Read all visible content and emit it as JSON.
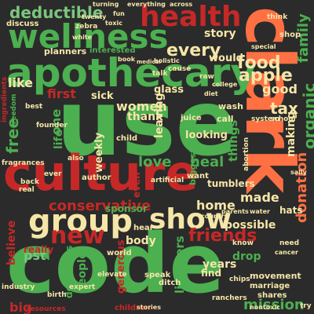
{
  "palette": {
    "background": "#2b2b2b",
    "green": "#4caf50",
    "red": "#c62828",
    "orange": "#ff7043",
    "cream": "#f5e6a8",
    "lightgreen": "#7bc67e",
    "gray": "#bdbdbd",
    "white": "#ffffff"
  },
  "words": [
    {
      "text": "use",
      "color": "#4caf50"
    },
    {
      "text": "code",
      "color": "#4caf50"
    },
    {
      "text": "clark",
      "color": "#ff7043"
    },
    {
      "text": "culture",
      "color": "#c62828"
    },
    {
      "text": "apothecary",
      "color": "#4caf50"
    },
    {
      "text": "wellness",
      "color": "#4caf50"
    },
    {
      "text": "health",
      "color": "#c62828"
    },
    {
      "text": "group",
      "color": "#f5e6a8"
    },
    {
      "text": "show",
      "color": "#f5e6a8"
    },
    {
      "text": "new",
      "color": "#c62828"
    },
    {
      "text": "friends",
      "color": "#c62828"
    },
    {
      "text": "deductible",
      "color": "#7bc67e"
    },
    {
      "text": "every",
      "color": "#f5e6a8"
    },
    {
      "text": "food",
      "color": "#f5e6a8"
    },
    {
      "text": "apple",
      "color": "#f5e6a8"
    },
    {
      "text": "conservative",
      "color": "#c62828"
    },
    {
      "text": "organic",
      "color": "#4caf50"
    },
    {
      "text": "donation",
      "color": "#ff7043"
    },
    {
      "text": "mission",
      "color": "#4caf50"
    },
    {
      "text": "family",
      "color": "#4caf50"
    },
    {
      "text": "women",
      "color": "#f5e6a8"
    },
    {
      "text": "tax",
      "color": "#f5e6a8"
    },
    {
      "text": "love",
      "color": "#4caf50"
    },
    {
      "text": "heal",
      "color": "#4caf50"
    },
    {
      "text": "home",
      "color": "#f5e6a8"
    },
    {
      "text": "made",
      "color": "#f5e6a8"
    },
    {
      "text": "free",
      "color": "#4caf50"
    },
    {
      "text": "like",
      "color": "#f5e6a8"
    },
    {
      "text": "story",
      "color": "#f5e6a8"
    },
    {
      "text": "would",
      "color": "#f5e6a8"
    },
    {
      "text": "pst",
      "color": "#7bc67e"
    },
    {
      "text": "years",
      "color": "#f5e6a8"
    },
    {
      "text": "listeners",
      "color": "#4caf50"
    },
    {
      "text": "possible",
      "color": "#f5e6a8"
    },
    {
      "text": "things",
      "color": "#4caf50"
    },
    {
      "text": "making",
      "color": "#f5e6a8"
    },
    {
      "text": "good",
      "color": "#f5e6a8"
    },
    {
      "text": "first",
      "color": "#c62828"
    },
    {
      "text": "thank",
      "color": "#f5e6a8"
    },
    {
      "text": "sick",
      "color": "#f5e6a8"
    },
    {
      "text": "glass",
      "color": "#f5e6a8"
    },
    {
      "text": "leaving",
      "color": "#f5e6a8"
    },
    {
      "text": "looking",
      "color": "#f5e6a8"
    },
    {
      "text": "tumblers",
      "color": "#f5e6a8"
    },
    {
      "text": "believe",
      "color": "#c62828"
    },
    {
      "text": "really",
      "color": "#c62828"
    },
    {
      "text": "body",
      "color": "#f5e6a8"
    },
    {
      "text": "people",
      "color": "#4caf50"
    },
    {
      "text": "donations",
      "color": "#4caf50"
    },
    {
      "text": "generous",
      "color": "#c62828"
    },
    {
      "text": "big",
      "color": "#c62828"
    },
    {
      "text": "one",
      "color": "#4caf50"
    },
    {
      "text": "life",
      "color": "#4caf50"
    },
    {
      "text": "drop",
      "color": "#4caf50"
    },
    {
      "text": "weekly",
      "color": "#f5e6a8"
    },
    {
      "text": "children",
      "color": "#c62828"
    },
    {
      "text": "sponsor",
      "color": "#4caf50"
    },
    {
      "text": "even",
      "color": "#c62828"
    },
    {
      "text": "biggest",
      "color": "#4caf50"
    },
    {
      "text": "want",
      "color": "#f5e6a8"
    },
    {
      "text": "shop",
      "color": "#f5e6a8"
    },
    {
      "text": "hats",
      "color": "#f5e6a8"
    },
    {
      "text": "wash",
      "color": "#f5e6a8"
    },
    {
      "text": "call",
      "color": "#f5e6a8"
    },
    {
      "text": "system",
      "color": "#f5e6a8"
    },
    {
      "text": "school",
      "color": "#f5e6a8"
    },
    {
      "text": "juice",
      "color": "#f5e6a8"
    },
    {
      "text": "movement",
      "color": "#f5e6a8"
    },
    {
      "text": "marriage",
      "color": "#f5e6a8"
    },
    {
      "text": "shares",
      "color": "#f5e6a8"
    },
    {
      "text": "find",
      "color": "#f5e6a8"
    },
    {
      "text": "speak",
      "color": "#f5e6a8"
    },
    {
      "text": "ditch",
      "color": "#f5e6a8"
    },
    {
      "text": "world",
      "color": "#f5e6a8"
    },
    {
      "text": "hear",
      "color": "#f5e6a8"
    },
    {
      "text": "planners",
      "color": "#f5e6a8"
    },
    {
      "text": "interested",
      "color": "#4caf50"
    },
    {
      "text": "discuss",
      "color": "#f5e6a8"
    },
    {
      "text": "zebra",
      "color": "#f5e6a8"
    },
    {
      "text": "ingredients",
      "color": "#c62828"
    },
    {
      "text": "freedom",
      "color": "#4caf50"
    },
    {
      "text": "author",
      "color": "#f5e6a8"
    },
    {
      "text": "child",
      "color": "#f5e6a8"
    },
    {
      "text": "artificial",
      "color": "#f5e6a8"
    },
    {
      "text": "sally",
      "color": "#f5e6a8"
    },
    {
      "text": "abortion",
      "color": "#f5e6a8"
    },
    {
      "text": "industry",
      "color": "#f5e6a8"
    },
    {
      "text": "resources",
      "color": "#c62828"
    },
    {
      "text": "expert",
      "color": "#f5e6a8"
    },
    {
      "text": "ranchers",
      "color": "#f5e6a8"
    },
    {
      "text": "chips",
      "color": "#f5e6a8"
    },
    {
      "text": "nontoxic",
      "color": "#f5e6a8"
    },
    {
      "text": "stories",
      "color": "#f5e6a8"
    },
    {
      "text": "elevate",
      "color": "#f5e6a8"
    },
    {
      "text": "birth",
      "color": "#f5e6a8"
    },
    {
      "text": "real",
      "color": "#f5e6a8"
    },
    {
      "text": "back",
      "color": "#f5e6a8"
    },
    {
      "text": "fragrances",
      "color": "#f5e6a8"
    },
    {
      "text": "ever",
      "color": "#f5e6a8"
    },
    {
      "text": "also",
      "color": "#f5e6a8"
    },
    {
      "text": "founder",
      "color": "#f5e6a8"
    },
    {
      "text": "best",
      "color": "#f5e6a8"
    },
    {
      "text": "think",
      "color": "#f5e6a8"
    },
    {
      "text": "everything",
      "color": "#f5e6a8"
    },
    {
      "text": "across",
      "color": "#f5e6a8"
    },
    {
      "text": "turning",
      "color": "#f5e6a8"
    },
    {
      "text": "fun",
      "color": "#f5e6a8"
    },
    {
      "text": "twenty",
      "color": "#f5e6a8"
    },
    {
      "text": "toxic",
      "color": "#f5e6a8"
    },
    {
      "text": "white",
      "color": "#f5e6a8"
    },
    {
      "text": "book",
      "color": "#f5e6a8"
    },
    {
      "text": "medical",
      "color": "#f5e6a8"
    },
    {
      "text": "holistic",
      "color": "#f5e6a8"
    },
    {
      "text": "cause",
      "color": "#f5e6a8"
    },
    {
      "text": "talk",
      "color": "#f5e6a8"
    },
    {
      "text": "raw",
      "color": "#f5e6a8"
    },
    {
      "text": "college",
      "color": "#f5e6a8"
    },
    {
      "text": "diet",
      "color": "#f5e6a8"
    },
    {
      "text": "special",
      "color": "#f5e6a8"
    },
    {
      "text": "need",
      "color": "#f5e6a8"
    },
    {
      "text": "cancer",
      "color": "#f5e6a8"
    },
    {
      "text": "water",
      "color": "#f5e6a8"
    },
    {
      "text": "parents",
      "color": "#f5e6a8"
    },
    {
      "text": "country",
      "color": "#f5e6a8"
    },
    {
      "text": "know",
      "color": "#f5e6a8"
    },
    {
      "text": "try",
      "color": "#f5e6a8"
    }
  ]
}
